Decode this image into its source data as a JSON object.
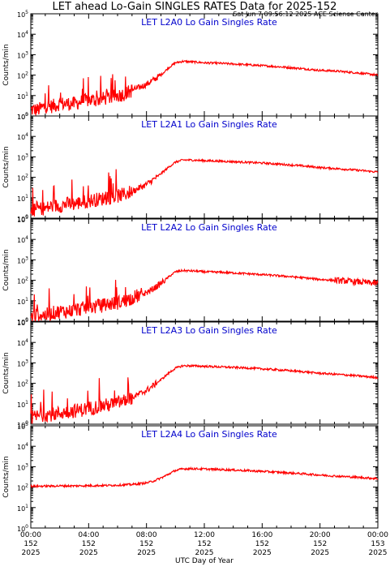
{
  "page": {
    "title": "LET ahead Lo-Gain SINGLES RATES Data for 2025-152",
    "timestamp": "Sat Jun  7 09:56:12 2025 ACE Science Center",
    "xlabel": "UTC Day of Year"
  },
  "colors": {
    "series": "#ff0000",
    "panel_title": "#0000cc",
    "axes": "#000000",
    "background": "#ffffff"
  },
  "chart_data": [
    {
      "type": "line",
      "title": "LET L2A0 Lo Gain Singles Rate",
      "ylabel": "Counts/min",
      "yscale": "log",
      "ylim": [
        1,
        100000
      ],
      "xlim": [
        0,
        24
      ],
      "series": [
        {
          "x": [
            0,
            0.5,
            1,
            1.5,
            2,
            2.5,
            3,
            3.5,
            4,
            4.5,
            5,
            5.5,
            6,
            6.5,
            7,
            7.5,
            8,
            8.5,
            9,
            9.5,
            10,
            10.5,
            11,
            11.5,
            12,
            13,
            14,
            15,
            16,
            17,
            18,
            19,
            20,
            21,
            22,
            23,
            24
          ],
          "values": [
            2,
            2,
            3,
            3,
            4,
            4,
            4,
            5,
            6,
            6,
            7,
            8,
            10,
            12,
            18,
            25,
            35,
            60,
            100,
            220,
            400,
            470,
            450,
            430,
            400,
            380,
            350,
            320,
            290,
            260,
            230,
            200,
            170,
            160,
            140,
            120,
            100
          ]
        }
      ],
      "tick_labels_y": [
        "10^0",
        "10^1",
        "10^2",
        "10^3",
        "10^4",
        "10^5"
      ]
    },
    {
      "type": "line",
      "title": "LET L2A1 Lo Gain Singles Rate",
      "ylabel": "Counts/min",
      "yscale": "log",
      "ylim": [
        1,
        100000
      ],
      "xlim": [
        0,
        24
      ],
      "series": [
        {
          "x": [
            0,
            0.5,
            1,
            1.5,
            2,
            2.5,
            3,
            3.5,
            4,
            4.5,
            5,
            5.5,
            6,
            6.5,
            7,
            7.5,
            8,
            8.5,
            9,
            9.5,
            10,
            10.5,
            11,
            11.5,
            12,
            13,
            14,
            15,
            16,
            17,
            18,
            19,
            20,
            21,
            22,
            23,
            24
          ],
          "values": [
            2,
            3,
            3,
            4,
            4,
            5,
            5,
            6,
            7,
            8,
            9,
            10,
            12,
            15,
            20,
            30,
            45,
            80,
            150,
            300,
            550,
            700,
            700,
            680,
            650,
            620,
            580,
            540,
            500,
            450,
            400,
            350,
            300,
            270,
            240,
            210,
            180
          ]
        }
      ],
      "tick_labels_y": [
        "10^0",
        "10^1",
        "10^2",
        "10^3",
        "10^4",
        "10^5"
      ]
    },
    {
      "type": "line",
      "title": "LET L2A2 Lo Gain Singles Rate",
      "ylabel": "Counts/min",
      "yscale": "log",
      "ylim": [
        1,
        100000
      ],
      "xlim": [
        0,
        24
      ],
      "series": [
        {
          "x": [
            0,
            0.5,
            1,
            1.5,
            2,
            2.5,
            3,
            3.5,
            4,
            4.5,
            5,
            5.5,
            6,
            6.5,
            7,
            7.5,
            8,
            8.5,
            9,
            9.5,
            10,
            10.5,
            11,
            11.5,
            12,
            13,
            14,
            15,
            16,
            17,
            18,
            19,
            20,
            21,
            22,
            23,
            24
          ],
          "values": [
            1.5,
            2,
            2,
            2.5,
            3,
            3,
            3.5,
            4,
            5,
            5,
            6,
            7,
            8,
            10,
            14,
            18,
            25,
            40,
            70,
            140,
            260,
            300,
            290,
            280,
            260,
            250,
            230,
            210,
            190,
            170,
            150,
            130,
            110,
            100,
            90,
            80,
            70
          ]
        }
      ],
      "tick_labels_y": [
        "10^0",
        "10^1",
        "10^2",
        "10^3",
        "10^4",
        "10^5"
      ]
    },
    {
      "type": "line",
      "title": "LET L2A3 Lo Gain Singles Rate",
      "ylabel": "Counts/min",
      "yscale": "log",
      "ylim": [
        1,
        100000
      ],
      "xlim": [
        0,
        24
      ],
      "series": [
        {
          "x": [
            0,
            0.5,
            1,
            1.5,
            2,
            2.5,
            3,
            3.5,
            4,
            4.5,
            5,
            5.5,
            6,
            6.5,
            7,
            7.5,
            8,
            8.5,
            9,
            9.5,
            10,
            10.5,
            11,
            11.5,
            12,
            13,
            14,
            15,
            16,
            17,
            18,
            19,
            20,
            21,
            22,
            23,
            24
          ],
          "values": [
            2,
            2.5,
            3,
            3,
            3.5,
            4,
            4.5,
            5,
            6,
            7,
            8,
            9,
            11,
            14,
            20,
            30,
            45,
            80,
            150,
            300,
            550,
            720,
            720,
            700,
            680,
            640,
            600,
            560,
            510,
            460,
            410,
            360,
            310,
            280,
            250,
            220,
            190
          ]
        }
      ],
      "tick_labels_y": [
        "10^0",
        "10^1",
        "10^2",
        "10^3",
        "10^4",
        "10^5"
      ]
    },
    {
      "type": "line",
      "title": "LET L2A4 Lo Gain Singles Rate",
      "ylabel": "Counts/min",
      "yscale": "log",
      "ylim": [
        1,
        100000
      ],
      "xlim": [
        0,
        24
      ],
      "series": [
        {
          "x": [
            0,
            1,
            2,
            3,
            4,
            5,
            6,
            7,
            8,
            8.5,
            9,
            9.5,
            10,
            10.5,
            11,
            11.5,
            12,
            13,
            14,
            15,
            16,
            17,
            18,
            19,
            20,
            21,
            22,
            23,
            24
          ],
          "values": [
            110,
            112,
            115,
            115,
            118,
            120,
            125,
            135,
            160,
            200,
            280,
            420,
            650,
            780,
            800,
            790,
            770,
            730,
            690,
            640,
            590,
            540,
            490,
            440,
            390,
            350,
            320,
            290,
            260
          ]
        }
      ],
      "tick_labels_y": [
        "10^0",
        "10^1",
        "10^2",
        "10^3",
        "10^4",
        "10^5"
      ]
    }
  ],
  "x_ticks": [
    {
      "time": "00:00",
      "doy": "152",
      "year": "2025"
    },
    {
      "time": "04:00",
      "doy": "152",
      "year": "2025"
    },
    {
      "time": "08:00",
      "doy": "152",
      "year": "2025"
    },
    {
      "time": "12:00",
      "doy": "152",
      "year": "2025"
    },
    {
      "time": "16:00",
      "doy": "152",
      "year": "2025"
    },
    {
      "time": "20:00",
      "doy": "152",
      "year": "2025"
    },
    {
      "time": "00:00",
      "doy": "153",
      "year": "2025"
    }
  ]
}
